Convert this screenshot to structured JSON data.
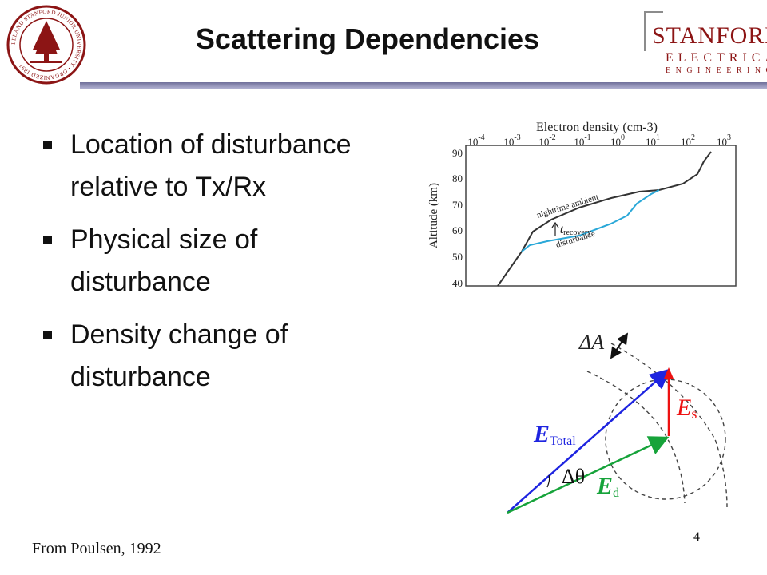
{
  "slide": {
    "title": "Scattering Dependencies",
    "bullets": [
      "Location of disturbance relative to Tx/Rx",
      "Physical size of disturbance",
      "Density change of disturbance"
    ],
    "credit": "From Poulsen, 1992",
    "page_number": "4"
  },
  "logo": {
    "line1": "STANFORD",
    "line2": "ELECTRICAL",
    "line3": "ENGINEERING"
  },
  "seal_text": "LELAND STANFORD JUNIOR UNIVERSITY • ORGANIZED 1891",
  "colors": {
    "cardinal": "#8c1515",
    "title_bar": "#8a8ab0",
    "ambient_curve": "#333333",
    "disturbance_curve": "#2aa8d8",
    "e_total": "#1e24e0",
    "e_d": "#16a33a",
    "e_s": "#ee1111"
  },
  "profile_chart": {
    "top_label": "Electron density (cm-3)",
    "x_ticks": [
      {
        "base": "10",
        "exp": "-4"
      },
      {
        "base": "10",
        "exp": "-3"
      },
      {
        "base": "10",
        "exp": "-2"
      },
      {
        "base": "10",
        "exp": "-1"
      },
      {
        "base": "10",
        "exp": "0"
      },
      {
        "base": "10",
        "exp": "1"
      },
      {
        "base": "10",
        "exp": "2"
      },
      {
        "base": "10",
        "exp": "3"
      }
    ],
    "y_label": "Altitude (km)",
    "y_ticks": [
      "90",
      "80",
      "70",
      "60",
      "50",
      "40"
    ],
    "ambient_label": "nighttime ambient",
    "disturbance_label": "disturbance",
    "recovery_t": "t",
    "recovery_sub": "recovery"
  },
  "vector_diagram": {
    "delta_a": "ΔA",
    "e_total_main": "E",
    "e_total_sub": "Total",
    "e_d_main": "E",
    "e_d_sub": "d",
    "e_s_main": "E",
    "e_s_sub": "s",
    "delta_theta": "Δθ"
  }
}
